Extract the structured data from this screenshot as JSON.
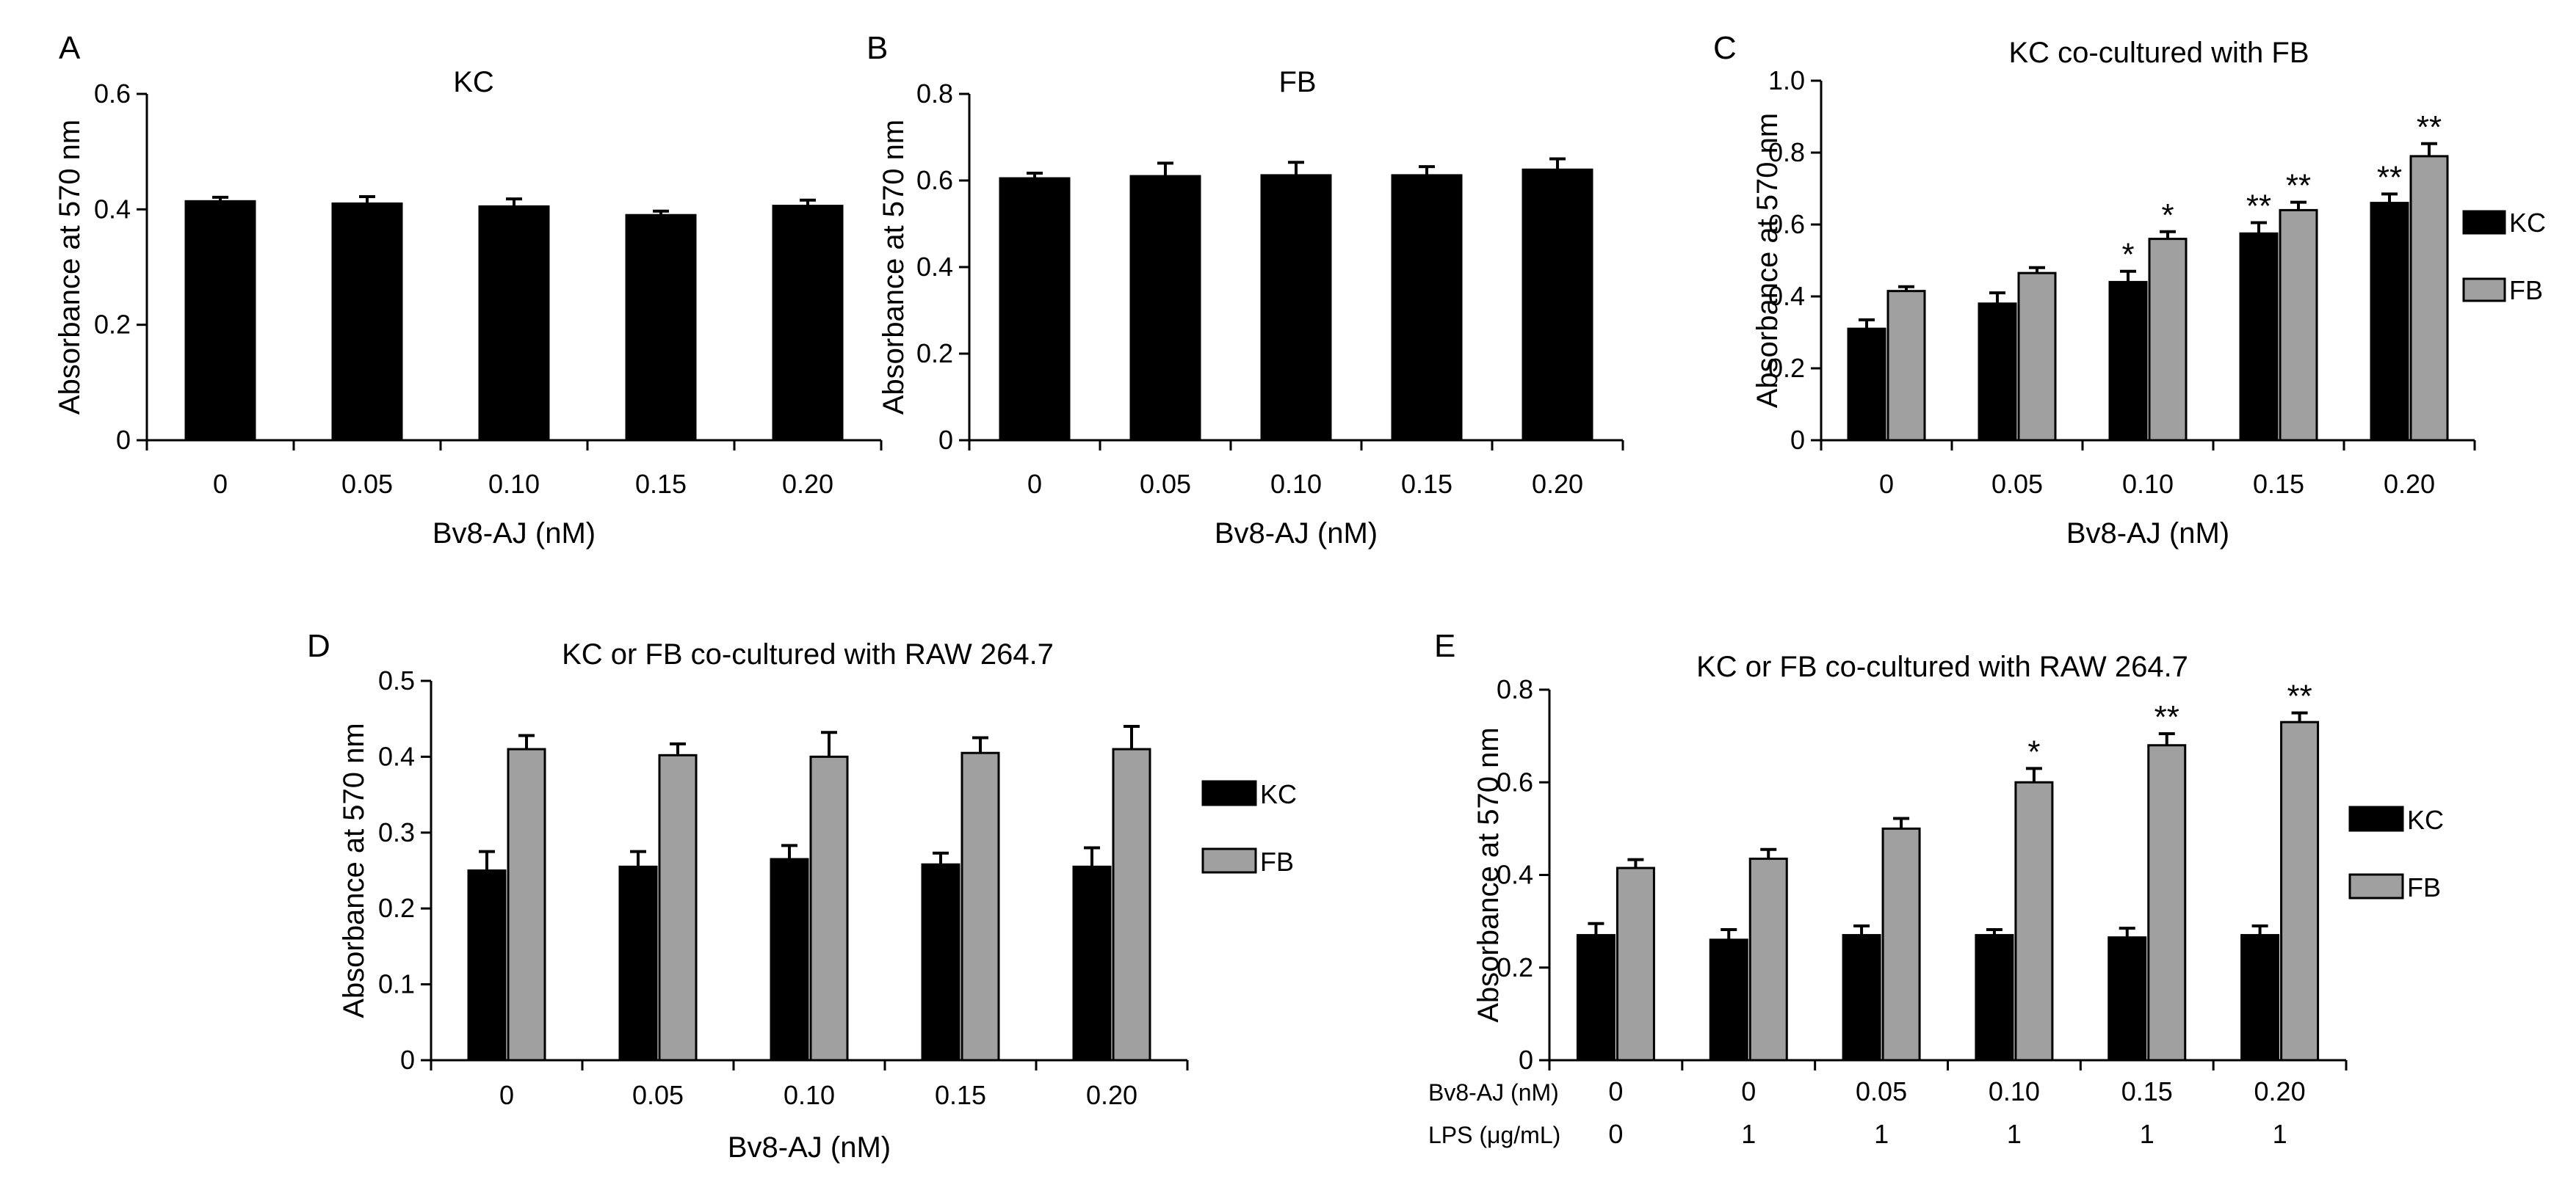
{
  "figure": {
    "colors": {
      "kc": "#000000",
      "fb": "#a0a0a0",
      "axis": "#000000"
    }
  },
  "chart_data": [
    {
      "panel": "A",
      "type": "bar",
      "title": "KC",
      "xlabel": "Bv8-AJ (nM)",
      "ylabel": "Absorbance at 570 nm",
      "ylim": [
        0,
        0.6
      ],
      "yticks": [
        "0",
        "0.2",
        "0.4",
        "0.6"
      ],
      "categories": [
        "0",
        "0.05",
        "0.10",
        "0.15",
        "0.20"
      ],
      "series": [
        {
          "name": "KC",
          "color": "#000000",
          "values": [
            0.414,
            0.41,
            0.405,
            0.39,
            0.406
          ],
          "errors": [
            0.007,
            0.012,
            0.013,
            0.007,
            0.01
          ],
          "sig": [
            "",
            "",
            "",
            "",
            ""
          ]
        }
      ]
    },
    {
      "panel": "B",
      "type": "bar",
      "title": "FB",
      "xlabel": "Bv8-AJ (nM)",
      "ylabel": "Absorbance at 570 nm",
      "ylim": [
        0,
        0.8
      ],
      "yticks": [
        "0",
        "0.2",
        "0.4",
        "0.6",
        "0.8"
      ],
      "categories": [
        "0",
        "0.05",
        "0.10",
        "0.15",
        "0.20"
      ],
      "series": [
        {
          "name": "FB",
          "color": "#000000",
          "values": [
            0.605,
            0.61,
            0.612,
            0.612,
            0.625
          ],
          "errors": [
            0.012,
            0.03,
            0.03,
            0.02,
            0.025
          ],
          "sig": [
            "",
            "",
            "",
            "",
            ""
          ]
        }
      ]
    },
    {
      "panel": "C",
      "type": "bar",
      "title": "KC co-cultured with FB",
      "xlabel": "Bv8-AJ (nM)",
      "ylabel": "Absorbance at 570 nm",
      "ylim": [
        0,
        1.0
      ],
      "yticks": [
        "0",
        "0.2",
        "0.4",
        "0.6",
        "0.8",
        "1.0"
      ],
      "categories": [
        "0",
        "0.05",
        "0.10",
        "0.15",
        "0.20"
      ],
      "legend": [
        "KC",
        "FB"
      ],
      "series": [
        {
          "name": "KC",
          "color": "#000000",
          "values": [
            0.31,
            0.38,
            0.44,
            0.575,
            0.66
          ],
          "errors": [
            0.025,
            0.03,
            0.03,
            0.03,
            0.025
          ],
          "sig": [
            "",
            "",
            "*",
            "**",
            "**"
          ]
        },
        {
          "name": "FB",
          "color": "#a0a0a0",
          "values": [
            0.415,
            0.465,
            0.56,
            0.64,
            0.79
          ],
          "errors": [
            0.012,
            0.015,
            0.02,
            0.022,
            0.035
          ],
          "sig": [
            "",
            "",
            "*",
            "**",
            "**"
          ]
        }
      ]
    },
    {
      "panel": "D",
      "type": "bar",
      "title": "KC or FB co-cultured with RAW 264.7",
      "xlabel": "Bv8-AJ (nM)",
      "ylabel": "Absorbance at 570 nm",
      "ylim": [
        0,
        0.5
      ],
      "yticks": [
        "0",
        "0.1",
        "0.2",
        "0.3",
        "0.4",
        "0.5"
      ],
      "categories": [
        "0",
        "0.05",
        "0.10",
        "0.15",
        "0.20"
      ],
      "legend": [
        "KC",
        "FB"
      ],
      "series": [
        {
          "name": "KC",
          "color": "#000000",
          "values": [
            0.25,
            0.255,
            0.265,
            0.258,
            0.255
          ],
          "errors": [
            0.025,
            0.02,
            0.018,
            0.015,
            0.025
          ],
          "sig": [
            "",
            "",
            "",
            "",
            ""
          ]
        },
        {
          "name": "FB",
          "color": "#a0a0a0",
          "values": [
            0.41,
            0.402,
            0.4,
            0.405,
            0.41
          ],
          "errors": [
            0.018,
            0.015,
            0.032,
            0.02,
            0.03
          ],
          "sig": [
            "",
            "",
            "",
            "",
            ""
          ]
        }
      ]
    },
    {
      "panel": "E",
      "type": "bar",
      "title": "KC or FB co-cultured with RAW 264.7",
      "xlabel": "",
      "ylabel": "Absorbance at 570 nm",
      "ylim": [
        0,
        0.8
      ],
      "yticks": [
        "0",
        "0.2",
        "0.4",
        "0.6",
        "0.8"
      ],
      "categories": [
        "0",
        "0",
        "0.05",
        "0.10",
        "0.15",
        "0.20"
      ],
      "row_labels": [
        {
          "label": "Bv8-AJ (nM)",
          "values": [
            "0",
            "0",
            "0.05",
            "0.10",
            "0.15",
            "0.20"
          ]
        },
        {
          "label": "LPS (μg/mL)",
          "values": [
            "0",
            "1",
            "1",
            "1",
            "1",
            "1"
          ]
        }
      ],
      "legend": [
        "KC",
        "FB"
      ],
      "series": [
        {
          "name": "KC",
          "color": "#000000",
          "values": [
            0.27,
            0.26,
            0.27,
            0.27,
            0.265,
            0.27
          ],
          "errors": [
            0.025,
            0.022,
            0.02,
            0.012,
            0.02,
            0.02
          ],
          "sig": [
            "",
            "",
            "",
            "",
            "",
            ""
          ]
        },
        {
          "name": "FB",
          "color": "#a0a0a0",
          "values": [
            0.415,
            0.435,
            0.5,
            0.6,
            0.68,
            0.73
          ],
          "errors": [
            0.018,
            0.02,
            0.022,
            0.03,
            0.025,
            0.02
          ],
          "sig": [
            "",
            "",
            "",
            "*",
            "**",
            "**"
          ]
        }
      ]
    }
  ]
}
